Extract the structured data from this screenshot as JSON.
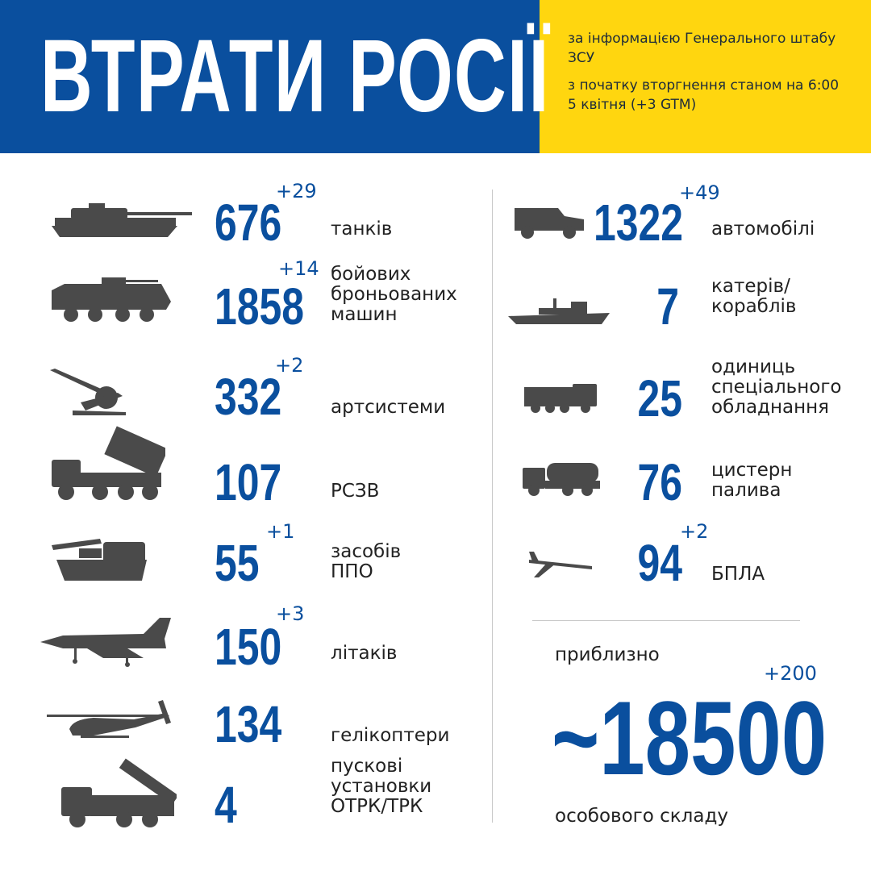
{
  "header": {
    "title": "ВТРАТИ РОСІЇ",
    "source": "за інформацією Генерального штабу ЗСУ",
    "as_of": "з початку вторгнення станом на 6:00 5 квітня (+3 GTM)",
    "colors": {
      "blue": "#0a4f9e",
      "yellow": "#ffd60f"
    }
  },
  "left": {
    "tanks": {
      "value": "676",
      "delta": "+29",
      "label": "танків",
      "icon": "tank-icon"
    },
    "afv": {
      "value": "1858",
      "delta": "+14",
      "label": "бойових\nброньованих\nмашин",
      "icon": "armored-vehicle-icon"
    },
    "artillery": {
      "value": "332",
      "delta": "+2",
      "label": "артсистеми",
      "icon": "artillery-icon"
    },
    "mlrs": {
      "value": "107",
      "label": "РСЗВ",
      "icon": "mlrs-icon"
    },
    "air_defense": {
      "value": "55",
      "delta": "+1",
      "label": "засобів\nППО",
      "icon": "air-defense-icon"
    },
    "aircraft": {
      "value": "150",
      "delta": "+3",
      "label": "літаків",
      "icon": "aircraft-icon"
    },
    "helicopters": {
      "value": "134",
      "label": "гелікоптери",
      "icon": "helicopter-icon"
    },
    "launchers": {
      "value": "4",
      "label": "пускові\nустановки\nОТРК/ТРК",
      "icon": "missile-launcher-icon"
    }
  },
  "right": {
    "vehicles": {
      "value": "1322",
      "delta": "+49",
      "label": "автомобілі",
      "icon": "truck-icon"
    },
    "boats": {
      "value": "7",
      "label": "катерів/\nкораблів",
      "icon": "ship-icon"
    },
    "special": {
      "value": "25",
      "label": "одиниць\nспеціального\nобладнання",
      "icon": "special-vehicle-icon"
    },
    "fuel": {
      "value": "76",
      "label": "цистерн\nпалива",
      "icon": "fuel-tanker-icon"
    },
    "drones": {
      "value": "94",
      "delta": "+2",
      "label": "БПЛА",
      "icon": "drone-icon"
    }
  },
  "personnel": {
    "prefix": "приблизно",
    "value": "~18500",
    "delta": "+200",
    "label": "особового складу"
  }
}
